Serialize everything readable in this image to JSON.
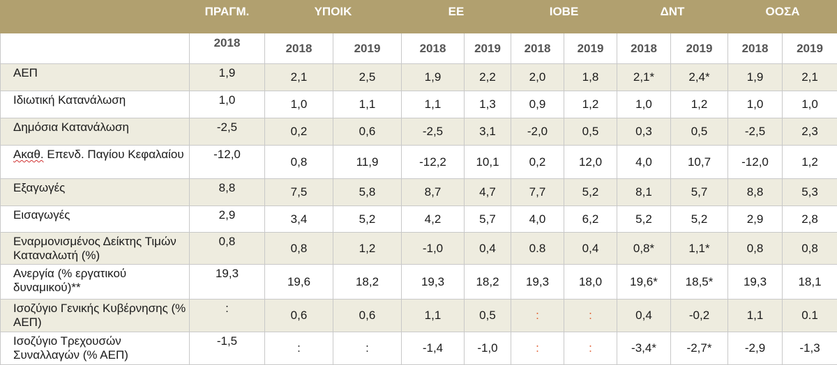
{
  "header": {
    "groups": [
      "ΠΡΑΓΜ.",
      "ΥΠΟΙΚ",
      "ΕΕ",
      "ΙΟΒΕ",
      "ΔΝΤ",
      "ΟΟΣΑ"
    ],
    "years": [
      "2018",
      "2018",
      "2019",
      "2018",
      "2019",
      "2018",
      "2019",
      "2018",
      "2019",
      "2018",
      "2019"
    ]
  },
  "rows": [
    {
      "label": "ΑΕΠ",
      "values": [
        "1,9",
        "2,1",
        "2,5",
        "1,9",
        "2,2",
        "2,0",
        "1,8",
        "2,1*",
        "2,4*",
        "1,9",
        "2,1"
      ]
    },
    {
      "label": "Ιδιωτική Κατανάλωση",
      "values": [
        "1,0",
        "1,0",
        "1,1",
        "1,1",
        "1,3",
        "0,9",
        "1,2",
        "1,0",
        "1,2",
        "1,0",
        "1,0"
      ]
    },
    {
      "label": "Δημόσια Κατανάλωση",
      "values": [
        "-2,5",
        "0,2",
        "0,6",
        "-2,5",
        "3,1",
        "-2,0",
        "0,5",
        "0,3",
        "0,5",
        "-2,5",
        "2,3"
      ]
    },
    {
      "label_prefix": "Ακαθ.",
      "label_rest": " Επενδ. Παγίου Κεφαλαίου",
      "values": [
        "-12,0",
        "0,8",
        "11,9",
        "-12,2",
        "10,1",
        "0,2",
        "12,0",
        "4,0",
        "10,7",
        "-12,0",
        "1,2"
      ]
    },
    {
      "label": "Εξαγωγές",
      "values": [
        "8,8",
        "7,5",
        "5,8",
        "8,7",
        "4,7",
        "7,7",
        "5,2",
        "8,1",
        "5,7",
        "8,8",
        "5,3"
      ]
    },
    {
      "label": "Εισαγωγές",
      "values": [
        "2,9",
        "3,4",
        "5,2",
        "4,2",
        "5,7",
        "4,0",
        "6,2",
        "5,2",
        "5,2",
        "2,9",
        "2,8"
      ]
    },
    {
      "label": "Εναρμονισμένος Δείκτης Τιμών Καταναλωτή (%)",
      "values": [
        "0,8",
        "0,8",
        "1,2",
        "-1,0",
        "0,4",
        "0.8",
        "0,4",
        "0,8*",
        "1,1*",
        "0,8",
        "0,8"
      ]
    },
    {
      "label": "Ανεργία (% εργατικού δυναμικού)**",
      "values": [
        "19,3",
        "19,6",
        "18,2",
        "19,3",
        "18,2",
        "19,3",
        "18,0",
        "19,6*",
        "18,5*",
        "19,3",
        "18,1"
      ]
    },
    {
      "label": "Ισοζύγιο Γενικής Κυβέρνησης (% ΑΕΠ)",
      "values": [
        ":",
        "0,6",
        "0,6",
        "1,1",
        "0,5",
        ":",
        ":",
        "0,4",
        "-0,2",
        "1,1",
        "0.1"
      ]
    },
    {
      "label": "Ισοζύγιο Τρεχουσών Συναλλαγών (% ΑΕΠ)",
      "values": [
        "-1,5",
        ":",
        ":",
        "-1,4",
        "-1,0",
        ":",
        ":",
        "-3,4*",
        "-2,7*",
        "-2,9",
        "-1,3"
      ]
    }
  ],
  "colors": {
    "header_bg": "#b1a06f",
    "stripe_bg": "#eeecdf",
    "missing_marker": "#e05a2b"
  }
}
